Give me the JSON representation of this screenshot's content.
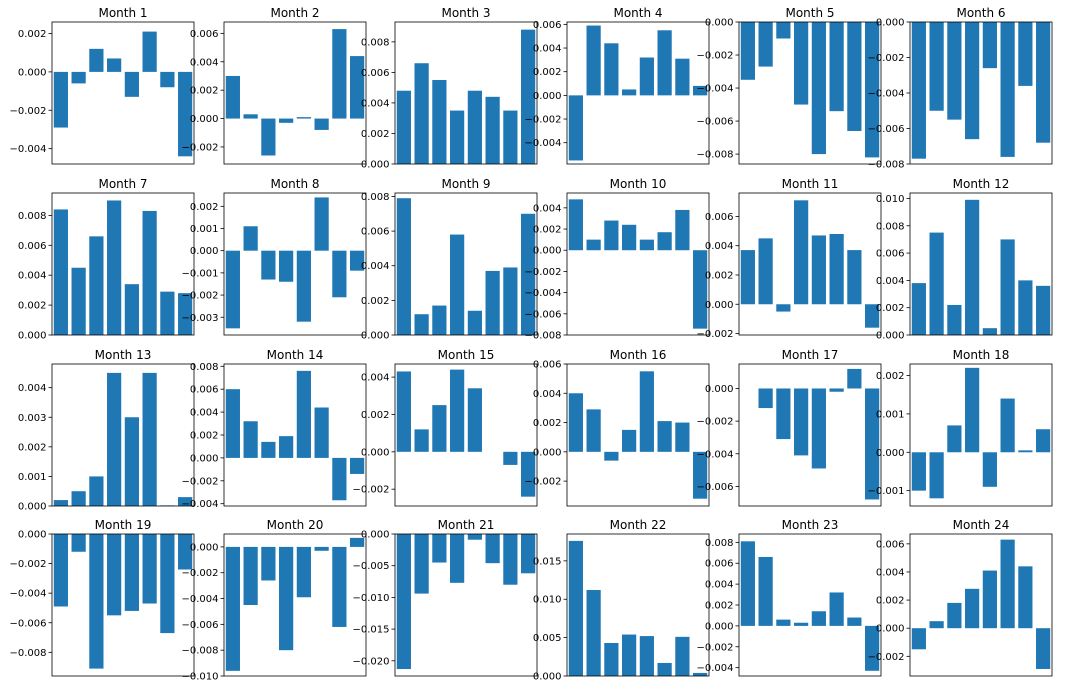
{
  "style": {
    "bar_color": "#1f77b4",
    "axes_color": "#000000",
    "background": "#ffffff"
  },
  "chart_data": [
    {
      "type": "bar",
      "title": "Month 1",
      "values": [
        -0.0029,
        -0.0006,
        0.0012,
        0.0007,
        -0.0013,
        0.0021,
        -0.0008,
        -0.0044
      ],
      "ylim": [
        -0.0048,
        0.0026
      ],
      "yticks": [
        -0.004,
        -0.002,
        0.0,
        0.002
      ]
    },
    {
      "type": "bar",
      "title": "Month 2",
      "values": [
        0.003,
        0.0003,
        -0.0026,
        -0.0003,
        0.0001,
        -0.0008,
        0.0063,
        0.0044
      ],
      "ylim": [
        -0.0032,
        0.0068
      ],
      "yticks": [
        -0.002,
        0.0,
        0.002,
        0.004,
        0.006
      ]
    },
    {
      "type": "bar",
      "title": "Month 3",
      "values": [
        0.0048,
        0.0066,
        0.0055,
        0.0035,
        0.0048,
        0.0044,
        0.0035,
        0.0088
      ],
      "ylim": [
        0,
        0.0093
      ],
      "yticks": [
        0.0,
        0.002,
        0.004,
        0.006,
        0.008
      ]
    },
    {
      "type": "bar",
      "title": "Month 4",
      "values": [
        -0.0055,
        0.0059,
        0.0044,
        0.0005,
        0.0032,
        0.0055,
        0.0031,
        0.0008
      ],
      "ylim": [
        -0.0058,
        0.0062
      ],
      "yticks": [
        -0.004,
        -0.002,
        0.0,
        0.002,
        0.004,
        0.006
      ]
    },
    {
      "type": "bar",
      "title": "Month 5",
      "values": [
        -0.0035,
        -0.0027,
        -0.001,
        -0.005,
        -0.008,
        -0.0054,
        -0.0066,
        -0.0082
      ],
      "ylim": [
        -0.0086,
        0
      ],
      "yticks": [
        -0.008,
        -0.006,
        -0.004,
        -0.002,
        0.0
      ]
    },
    {
      "type": "bar",
      "title": "Month 6",
      "values": [
        -0.0077,
        -0.005,
        -0.0055,
        -0.0066,
        -0.0026,
        -0.0076,
        -0.0036,
        -0.0068
      ],
      "ylim": [
        -0.008,
        0
      ],
      "yticks": [
        -0.008,
        -0.006,
        -0.004,
        -0.002,
        0.0
      ]
    },
    {
      "type": "bar",
      "title": "Month 7",
      "values": [
        0.0084,
        0.0045,
        0.0066,
        0.009,
        0.0034,
        0.0083,
        0.0029,
        0.0028
      ],
      "ylim": [
        0,
        0.0095
      ],
      "yticks": [
        0.0,
        0.002,
        0.004,
        0.006,
        0.008
      ]
    },
    {
      "type": "bar",
      "title": "Month 8",
      "values": [
        -0.0035,
        0.0011,
        -0.0013,
        -0.0014,
        -0.0032,
        0.0024,
        -0.0021,
        -0.0009
      ],
      "ylim": [
        -0.0038,
        0.0026
      ],
      "yticks": [
        -0.003,
        -0.002,
        -0.001,
        0.0,
        0.001,
        0.002
      ]
    },
    {
      "type": "bar",
      "title": "Month 9",
      "values": [
        0.0079,
        0.0012,
        0.0017,
        0.0058,
        0.0014,
        0.0037,
        0.0039,
        0.007
      ],
      "ylim": [
        0,
        0.0082
      ],
      "yticks": [
        0.0,
        0.002,
        0.004,
        0.006,
        0.008
      ]
    },
    {
      "type": "bar",
      "title": "Month 10",
      "values": [
        0.0048,
        0.001,
        0.0028,
        0.0024,
        0.001,
        0.0017,
        0.0038,
        -0.0074
      ],
      "ylim": [
        -0.008,
        0.0054
      ],
      "yticks": [
        -0.008,
        -0.006,
        -0.004,
        -0.002,
        0.0,
        0.002,
        0.004
      ]
    },
    {
      "type": "bar",
      "title": "Month 11",
      "values": [
        0.0037,
        0.0045,
        -0.0005,
        0.0071,
        0.0047,
        0.0048,
        0.0037,
        -0.0016
      ],
      "ylim": [
        -0.0021,
        0.0076
      ],
      "yticks": [
        -0.002,
        0.0,
        0.002,
        0.004,
        0.006
      ]
    },
    {
      "type": "bar",
      "title": "Month 12",
      "values": [
        0.0038,
        0.0075,
        0.0022,
        0.0099,
        0.0005,
        0.007,
        0.004,
        0.0036
      ],
      "ylim": [
        0,
        0.0104
      ],
      "yticks": [
        0.0,
        0.002,
        0.004,
        0.006,
        0.008,
        0.01
      ]
    },
    {
      "type": "bar",
      "title": "Month 13",
      "values": [
        0.0002,
        0.0005,
        0.001,
        0.0045,
        0.003,
        0.0045,
        2e-05,
        0.0003
      ],
      "ylim": [
        0,
        0.0048
      ],
      "yticks": [
        0.0,
        0.001,
        0.002,
        0.003,
        0.004
      ]
    },
    {
      "type": "bar",
      "title": "Month 14",
      "values": [
        0.006,
        0.0032,
        0.0014,
        0.0019,
        0.0076,
        0.0044,
        -0.0037,
        -0.0014
      ],
      "ylim": [
        -0.0042,
        0.0082
      ],
      "yticks": [
        -0.004,
        -0.002,
        0.0,
        0.002,
        0.004,
        0.006,
        0.008
      ]
    },
    {
      "type": "bar",
      "title": "Month 15",
      "values": [
        0.0043,
        0.0012,
        0.0025,
        0.0044,
        0.0034,
        0.0,
        -0.0007,
        -0.0024
      ],
      "ylim": [
        -0.0029,
        0.0047
      ],
      "yticks": [
        -0.002,
        0.0,
        0.002,
        0.004
      ]
    },
    {
      "type": "bar",
      "title": "Month 16",
      "values": [
        0.004,
        0.0029,
        -0.0006,
        0.0015,
        0.0055,
        0.0021,
        0.002,
        -0.0032
      ],
      "ylim": [
        -0.0037,
        0.006
      ],
      "yticks": [
        -0.002,
        0.0,
        0.002,
        0.004,
        0.006
      ]
    },
    {
      "type": "bar",
      "title": "Month 17",
      "values": [
        0.0,
        -0.0012,
        -0.0031,
        -0.0041,
        -0.0049,
        -0.0002,
        0.0012,
        -0.0068
      ],
      "ylim": [
        -0.0072,
        0.0015
      ],
      "yticks": [
        -0.006,
        -0.004,
        -0.002,
        0.0
      ]
    },
    {
      "type": "bar",
      "title": "Month 18",
      "values": [
        -0.001,
        -0.0012,
        0.0007,
        0.0022,
        -0.0009,
        0.0014,
        5e-05,
        0.0006
      ],
      "ylim": [
        -0.0014,
        0.0023
      ],
      "yticks": [
        -0.001,
        0.0,
        0.001,
        0.002
      ]
    },
    {
      "type": "bar",
      "title": "Month 19",
      "values": [
        -0.0049,
        -0.0012,
        -0.0091,
        -0.0055,
        -0.0052,
        -0.0047,
        -0.0067,
        -0.0024
      ],
      "ylim": [
        -0.0096,
        0
      ],
      "yticks": [
        -0.008,
        -0.006,
        -0.004,
        -0.002,
        0.0
      ]
    },
    {
      "type": "bar",
      "title": "Month 20",
      "values": [
        -0.0096,
        -0.0045,
        -0.0026,
        -0.008,
        -0.0039,
        -0.0003,
        -0.0062,
        0.0007
      ],
      "ylim": [
        -0.01,
        0.001
      ],
      "yticks": [
        -0.01,
        -0.008,
        -0.006,
        -0.004,
        -0.002,
        0.0
      ]
    },
    {
      "type": "bar",
      "title": "Month 21",
      "values": [
        -0.0213,
        -0.0094,
        -0.0045,
        -0.0077,
        -0.0009,
        -0.0046,
        -0.008,
        -0.0062
      ],
      "ylim": [
        -0.0224,
        0
      ],
      "yticks": [
        -0.02,
        -0.015,
        -0.01,
        -0.005,
        0.0
      ]
    },
    {
      "type": "bar",
      "title": "Month 22",
      "values": [
        0.0176,
        0.0112,
        0.0043,
        0.0054,
        0.0052,
        0.0017,
        0.0051,
        0.0004
      ],
      "ylim": [
        0,
        0.0185
      ],
      "yticks": [
        0.0,
        0.005,
        0.01,
        0.015
      ]
    },
    {
      "type": "bar",
      "title": "Month 23",
      "values": [
        0.0081,
        0.0066,
        0.0006,
        0.0003,
        0.0014,
        0.0032,
        0.0008,
        -0.0043
      ],
      "ylim": [
        -0.0048,
        0.0088
      ],
      "yticks": [
        -0.004,
        -0.002,
        0.0,
        0.002,
        0.004,
        0.006,
        0.008
      ]
    },
    {
      "type": "bar",
      "title": "Month 24",
      "values": [
        -0.0015,
        0.0005,
        0.0018,
        0.0028,
        0.0041,
        0.0063,
        0.0044,
        -0.0029
      ],
      "ylim": [
        -0.0034,
        0.0067
      ],
      "yticks": [
        -0.002,
        0.0,
        0.002,
        0.004,
        0.006
      ]
    }
  ]
}
